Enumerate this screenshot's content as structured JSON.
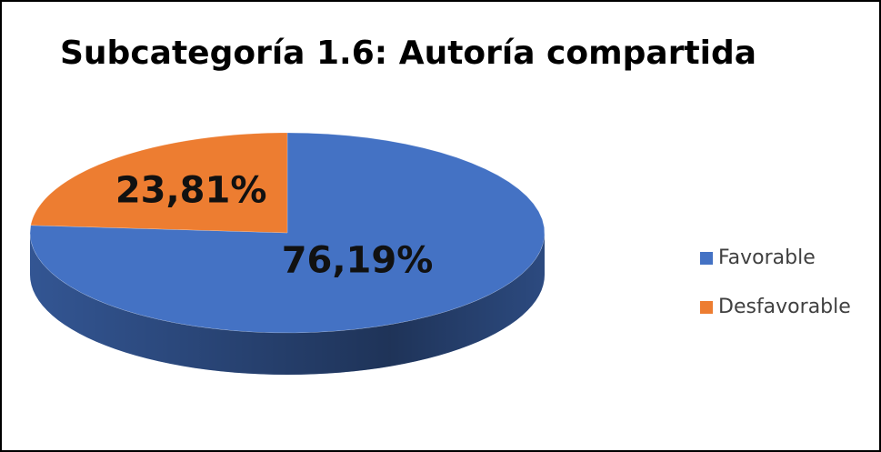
{
  "chart_data": {
    "type": "pie",
    "title": "Subcategoría 1.6: Autoría compartida",
    "categories": [
      "Favorable",
      "Desfavorable"
    ],
    "values": [
      76.19,
      23.81
    ],
    "value_labels": [
      "76,19%",
      "23,81%"
    ],
    "colors": [
      "#4472c4",
      "#ed7d31"
    ],
    "legend": "right"
  }
}
